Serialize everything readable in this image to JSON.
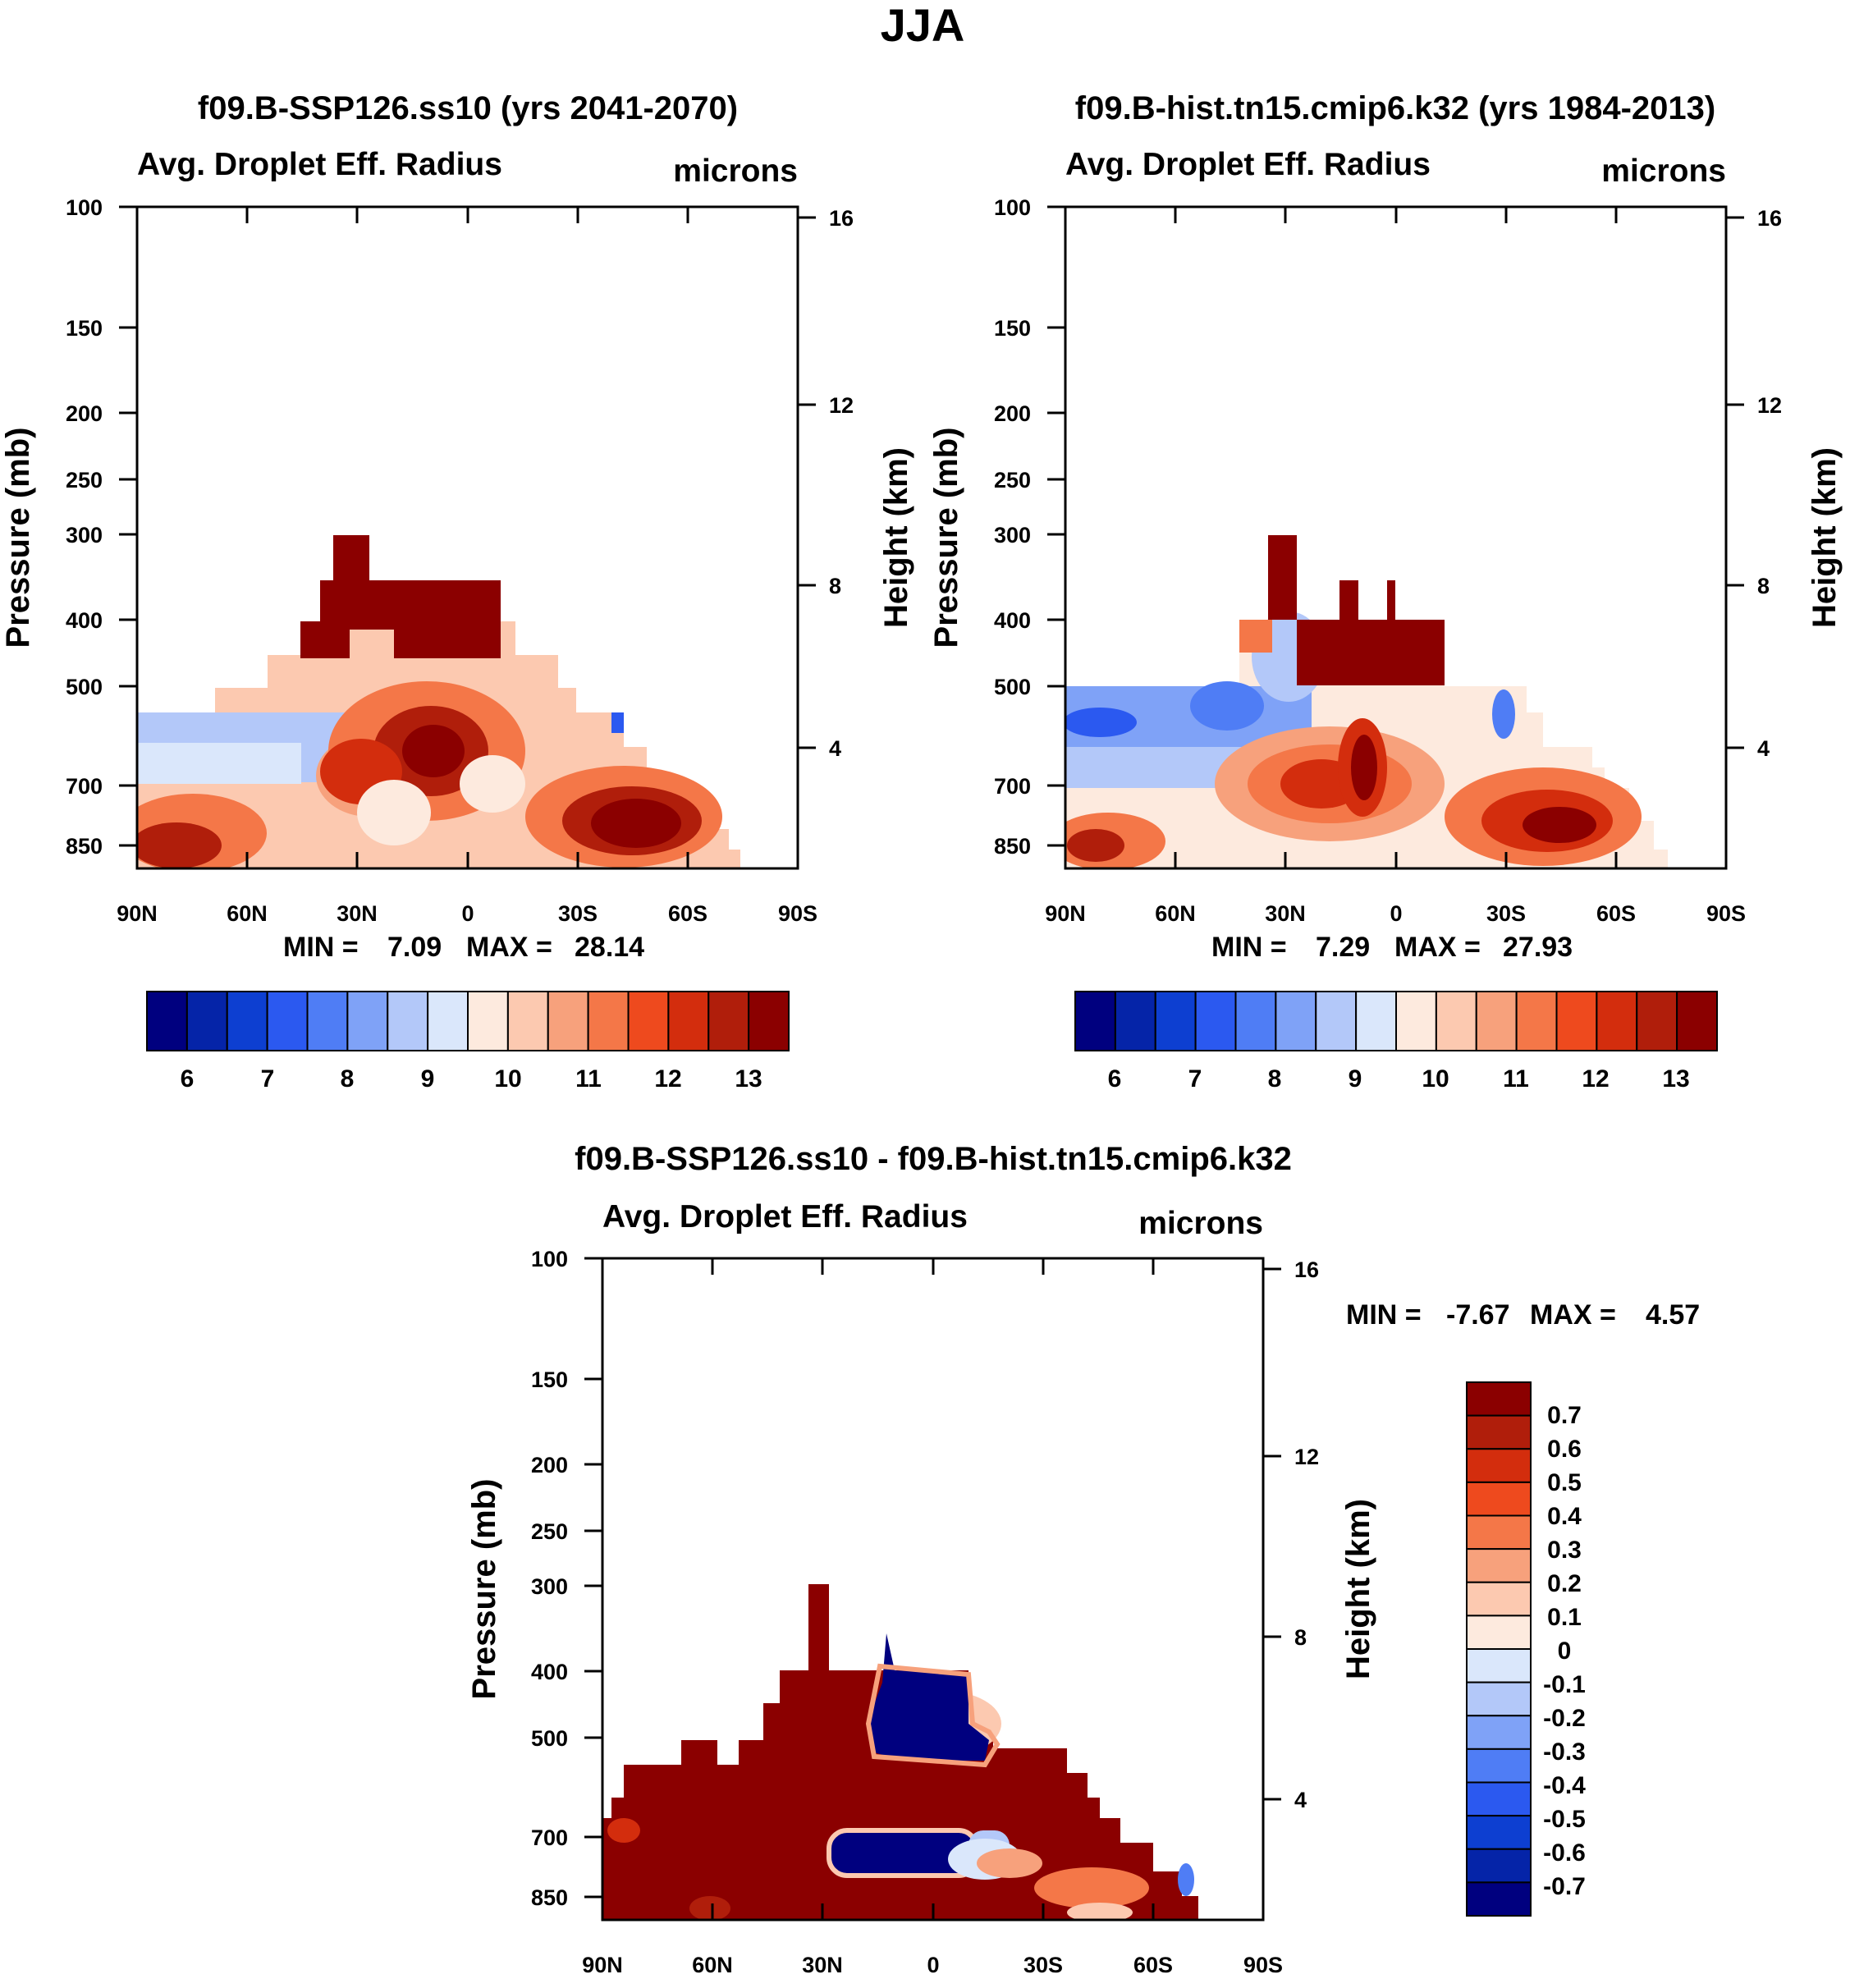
{
  "figure": {
    "title": "JJA"
  },
  "chart_data": [
    {
      "type": "heatmap",
      "id": "future",
      "title": "f09.B-SSP126.ss10 (yrs 2041-2070)",
      "subtitle_left": "Avg. Droplet Eff. Radius",
      "subtitle_right": "microns",
      "ylabel": "Pressure (mb)",
      "ylabel_right": "Height (km)",
      "xticks": [
        "90N",
        "60N",
        "30N",
        "0",
        "30S",
        "60S",
        "90S"
      ],
      "yticks": [
        "100",
        "150",
        "200",
        "250",
        "300",
        "400",
        "500",
        "700",
        "850"
      ],
      "yticks_right": [
        "16",
        "12",
        "8",
        "4"
      ],
      "ylim": [
        1000,
        100
      ],
      "min_label": "MIN =",
      "min_value": "7.09",
      "max_label": "MAX =",
      "max_value": "28.14",
      "colorbar_labels": [
        "6",
        "7",
        "8",
        "9",
        "10",
        "11",
        "12",
        "13"
      ],
      "colorbar_levels": [
        6,
        6.5,
        7,
        7.5,
        8,
        8.5,
        9,
        9.5,
        10,
        10.5,
        11,
        11.5,
        12,
        12.5,
        13
      ]
    },
    {
      "type": "heatmap",
      "id": "historical",
      "title": "f09.B-hist.tn15.cmip6.k32 (yrs 1984-2013)",
      "subtitle_left": "Avg. Droplet Eff. Radius",
      "subtitle_right": "microns",
      "ylabel": "Pressure (mb)",
      "ylabel_right": "Height (km)",
      "xticks": [
        "90N",
        "60N",
        "30N",
        "0",
        "30S",
        "60S",
        "90S"
      ],
      "yticks": [
        "100",
        "150",
        "200",
        "250",
        "300",
        "400",
        "500",
        "700",
        "850"
      ],
      "yticks_right": [
        "16",
        "12",
        "8",
        "4"
      ],
      "ylim": [
        1000,
        100
      ],
      "min_label": "MIN =",
      "min_value": "7.29",
      "max_label": "MAX =",
      "max_value": "27.93",
      "colorbar_labels": [
        "6",
        "7",
        "8",
        "9",
        "10",
        "11",
        "12",
        "13"
      ],
      "colorbar_levels": [
        6,
        6.5,
        7,
        7.5,
        8,
        8.5,
        9,
        9.5,
        10,
        10.5,
        11,
        11.5,
        12,
        12.5,
        13
      ]
    },
    {
      "type": "heatmap",
      "id": "difference",
      "title": "f09.B-SSP126.ss10 - f09.B-hist.tn15.cmip6.k32",
      "subtitle_left": "Avg. Droplet Eff. Radius",
      "subtitle_right": "microns",
      "ylabel": "Pressure (mb)",
      "ylabel_right": "Height (km)",
      "xticks": [
        "90N",
        "60N",
        "30N",
        "0",
        "30S",
        "60S",
        "90S"
      ],
      "yticks": [
        "100",
        "150",
        "200",
        "250",
        "300",
        "400",
        "500",
        "700",
        "850"
      ],
      "yticks_right": [
        "16",
        "12",
        "8",
        "4"
      ],
      "ylim": [
        1000,
        100
      ],
      "min_label": "MIN =",
      "min_value": "-7.67",
      "max_label": "MAX =",
      "max_value": "4.57",
      "colorbar_labels": [
        "0.7",
        "0.6",
        "0.5",
        "0.4",
        "0.3",
        "0.2",
        "0.1",
        "0",
        "-0.1",
        "-0.2",
        "-0.3",
        "-0.4",
        "-0.5",
        "-0.6",
        "-0.7"
      ],
      "colorbar_levels": [
        -0.7,
        -0.6,
        -0.5,
        -0.4,
        -0.3,
        -0.2,
        -0.1,
        0,
        0.1,
        0.2,
        0.3,
        0.4,
        0.5,
        0.6,
        0.7
      ]
    }
  ],
  "palette": [
    "#00007f",
    "#0524a8",
    "#0d3fd1",
    "#2b59f0",
    "#4f7df5",
    "#7fa2f7",
    "#b3c8f9",
    "#dae7fb",
    "#fdeade",
    "#fcc9b0",
    "#f7a17c",
    "#f47748",
    "#ee4a1e",
    "#d32d0d",
    "#b01e0b",
    "#8b0000"
  ]
}
